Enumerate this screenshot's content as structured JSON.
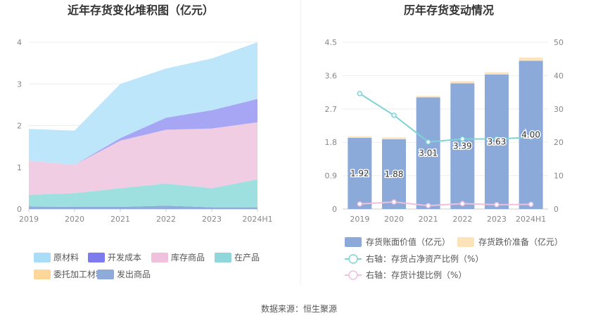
{
  "source_text": "数据来源：恒生聚源",
  "chart_data": [
    {
      "type": "area",
      "title": "近年存货变化堆积图（亿元）",
      "categories": [
        "2019",
        "2020",
        "2021",
        "2022",
        "2023",
        "2024H1"
      ],
      "ylim": [
        0,
        4
      ],
      "yticks": [
        "0",
        "1",
        "2",
        "3",
        "4"
      ],
      "grid": true,
      "legend_position": "bottom",
      "series": [
        {
          "name": "发出商品",
          "color": "#8eabd9",
          "values": [
            0.06,
            0.05,
            0.05,
            0.08,
            0.04,
            0.04
          ]
        },
        {
          "name": "委托加工材料",
          "color": "#fdd79a",
          "values": [
            0.0,
            0.0,
            0.0,
            0.0,
            0.0,
            0.0
          ]
        },
        {
          "name": "在产品",
          "color": "#9ee0e0",
          "values": [
            0.28,
            0.33,
            0.45,
            0.53,
            0.46,
            0.67
          ]
        },
        {
          "name": "库存商品",
          "color": "#f0cde3",
          "values": [
            0.82,
            0.68,
            1.14,
            1.29,
            1.43,
            1.37
          ]
        },
        {
          "name": "开发成本",
          "color": "#a6a6f5",
          "values": [
            0.0,
            0.0,
            0.06,
            0.29,
            0.44,
            0.56
          ]
        },
        {
          "name": "原材料",
          "color": "#bde6fb",
          "values": [
            0.76,
            0.82,
            1.3,
            1.18,
            1.24,
            1.36
          ]
        }
      ],
      "legend": [
        {
          "name": "原材料",
          "color": "#a9ddf7"
        },
        {
          "name": "开发成本",
          "color": "#7d7bed"
        },
        {
          "name": "库存商品",
          "color": "#efc1dd"
        },
        {
          "name": "在产品",
          "color": "#8fd7da"
        },
        {
          "name": "委托加工材料",
          "color": "#fdd79a"
        },
        {
          "name": "发出商品",
          "color": "#8eabd9"
        }
      ]
    },
    {
      "type": "bar",
      "title": "历年存货变动情况",
      "categories": [
        "2019",
        "2020",
        "2021",
        "2022",
        "2023",
        "2024H1"
      ],
      "ylim_left": [
        0,
        4.5
      ],
      "yticks_left": [
        "0",
        "0.9",
        "1.8",
        "2.7",
        "3.6",
        "4.5"
      ],
      "ylim_right": [
        0,
        50
      ],
      "yticks_right": [
        "0",
        "10",
        "20",
        "30",
        "40",
        "50"
      ],
      "grid": true,
      "legend_position": "bottom",
      "bars": [
        {
          "name": "存货账面价值（亿元）",
          "color": "#8caad9",
          "values": [
            1.92,
            1.88,
            3.01,
            3.39,
            3.63,
            4.0
          ],
          "labels": [
            "1.92",
            "1.88",
            "3.01",
            "3.39",
            "3.63",
            "4.00"
          ]
        },
        {
          "name": "存货跌价准备（亿元）",
          "color": "#fde3b9",
          "values": [
            0.04,
            0.05,
            0.04,
            0.06,
            0.06,
            0.09
          ]
        }
      ],
      "lines": [
        {
          "name": "右轴：存货占净资产比例（%）",
          "color": "#7fd3d6",
          "values": [
            34.6,
            28.1,
            20.1,
            21.0,
            21.0,
            21.5
          ]
        },
        {
          "name": "右轴：存货计提比例（%）",
          "color": "#efbfdc",
          "values": [
            1.5,
            2.1,
            1.0,
            1.6,
            1.3,
            1.4
          ]
        }
      ]
    }
  ]
}
